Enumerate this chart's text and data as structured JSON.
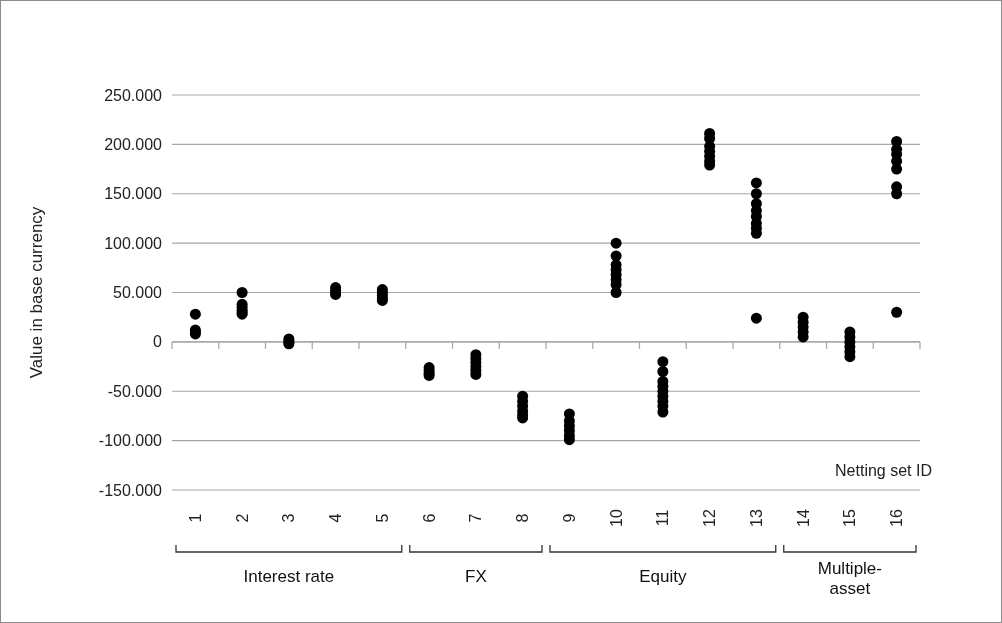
{
  "chart_data": {
    "type": "scatter",
    "xlabel": "Netting set ID",
    "ylabel": "Value in base currency",
    "categories": [
      "1",
      "2",
      "3",
      "4",
      "5",
      "6",
      "7",
      "8",
      "9",
      "10",
      "11",
      "12",
      "13",
      "14",
      "15",
      "16"
    ],
    "series": [
      {
        "color": "#000000",
        "x": [
          "1",
          "1",
          "1",
          "1",
          "2",
          "2",
          "2",
          "2",
          "2",
          "2",
          "3",
          "3",
          "3",
          "3",
          "4",
          "4",
          "4",
          "4",
          "5",
          "5",
          "5",
          "5",
          "5",
          "6",
          "6",
          "6",
          "6",
          "7",
          "7",
          "7",
          "7",
          "7",
          "7",
          "8",
          "8",
          "8",
          "8",
          "8",
          "8",
          "9",
          "9",
          "9",
          "9",
          "9",
          "9",
          "10",
          "10",
          "10",
          "10",
          "10",
          "10",
          "10",
          "10",
          "11",
          "11",
          "11",
          "11",
          "11",
          "11",
          "11",
          "11",
          "11",
          "12",
          "12",
          "12",
          "12",
          "12",
          "12",
          "12",
          "13",
          "13",
          "13",
          "13",
          "13",
          "13",
          "13",
          "13",
          "13",
          "14",
          "14",
          "14",
          "14",
          "14",
          "15",
          "15",
          "15",
          "15",
          "15",
          "15",
          "16",
          "16",
          "16",
          "16",
          "16",
          "16",
          "16",
          "16"
        ],
        "values": [
          28000,
          12000,
          10000,
          8000,
          50000,
          38000,
          35000,
          32000,
          30000,
          28000,
          3000,
          1000,
          -1000,
          -2000,
          55000,
          52000,
          50000,
          48000,
          53000,
          50000,
          47000,
          44000,
          42000,
          -26000,
          -29000,
          -32000,
          -34000,
          -13000,
          -17000,
          -21000,
          -25000,
          -29000,
          -33000,
          -55000,
          -60000,
          -65000,
          -70000,
          -74000,
          -77000,
          -73000,
          -80000,
          -85000,
          -90000,
          -95000,
          -99000,
          100000,
          87000,
          78000,
          73000,
          68000,
          63000,
          58000,
          50000,
          -20000,
          -30000,
          -40000,
          -45000,
          -50000,
          -55000,
          -60000,
          -65000,
          -71000,
          211000,
          206000,
          198000,
          193000,
          188000,
          183000,
          179000,
          161000,
          150000,
          140000,
          133000,
          127000,
          120000,
          115000,
          110000,
          24000,
          25000,
          20000,
          15000,
          10000,
          5000,
          10000,
          5000,
          0,
          -5000,
          -10000,
          -15000,
          203000,
          195000,
          190000,
          183000,
          175000,
          157000,
          150000,
          30000
        ]
      }
    ],
    "ylim": [
      -150000,
      250000
    ],
    "yticks": [
      {
        "value": -150000,
        "label": "-150.000"
      },
      {
        "value": -100000,
        "label": "-100.000"
      },
      {
        "value": -50000,
        "label": "-50.000"
      },
      0,
      {
        "value": 50000,
        "label": "50.000"
      },
      {
        "value": 100000,
        "label": "100.000"
      },
      {
        "value": 150000,
        "label": "150.000"
      },
      {
        "value": 200000,
        "label": "200.000"
      },
      {
        "value": 250000,
        "label": "250.000"
      }
    ],
    "grid": "y",
    "marker": "circle",
    "annotations": [
      "Interest rate",
      "FX",
      "Equity",
      "Multiple-asset"
    ]
  }
}
